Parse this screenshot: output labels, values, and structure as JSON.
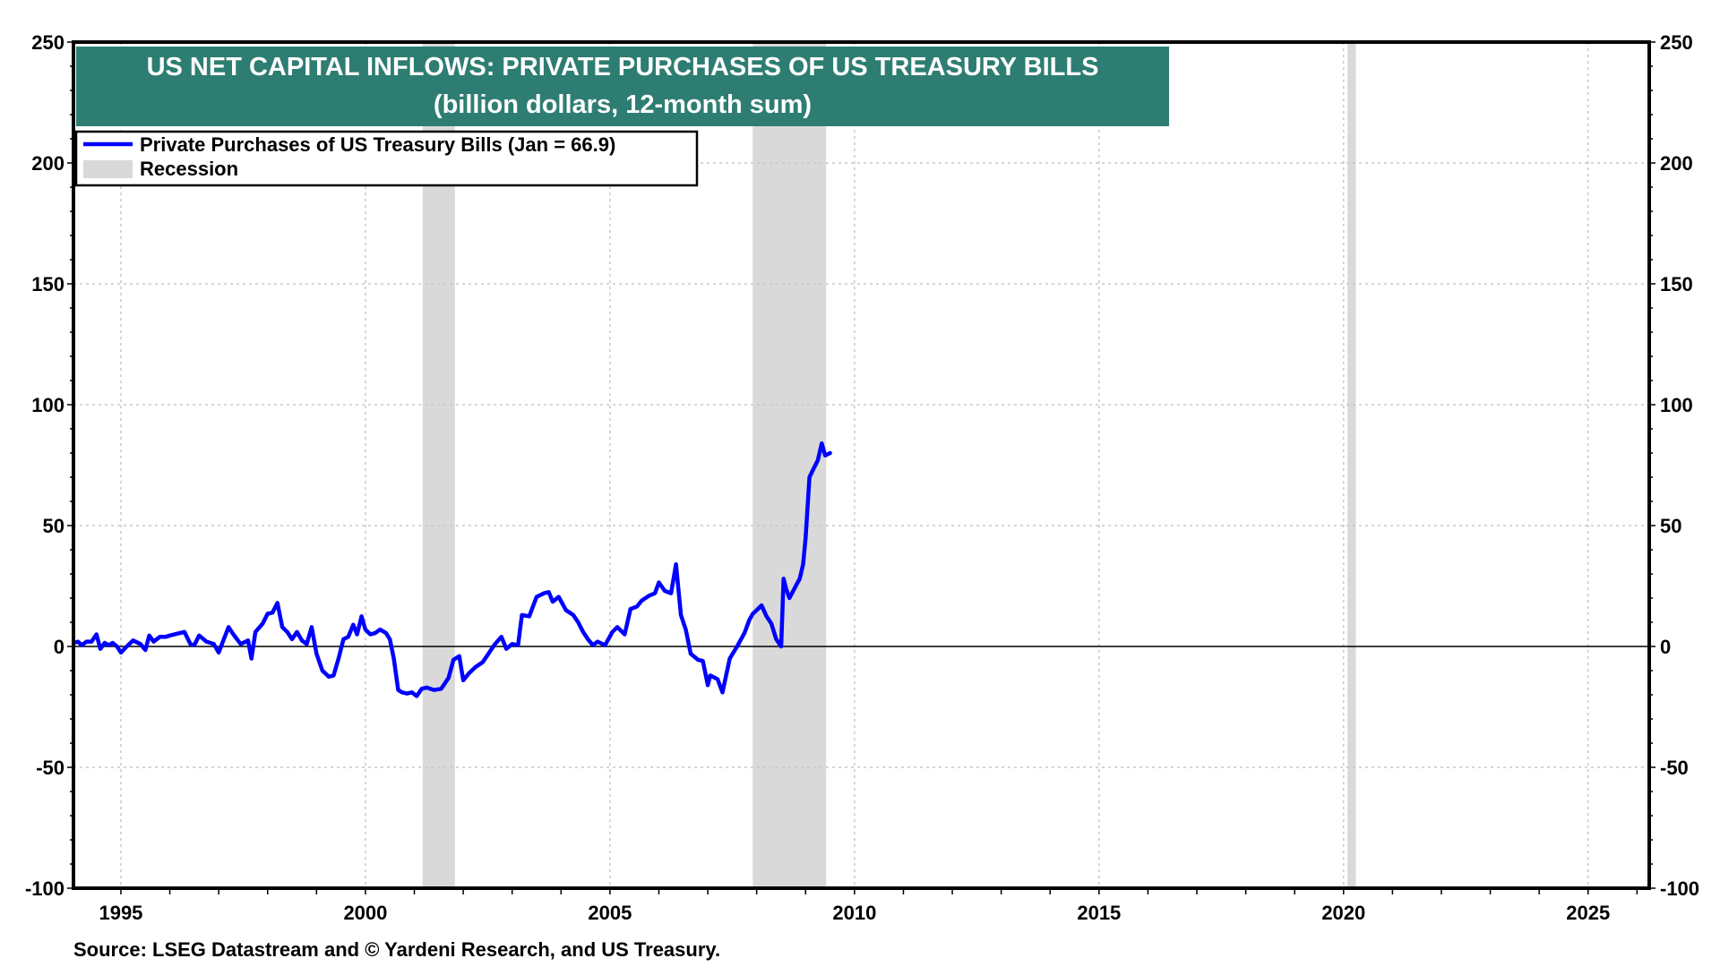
{
  "chart_data": {
    "type": "line",
    "title": "US NET CAPITAL INFLOWS: PRIVATE PURCHASES OF US TREASURY BILLS",
    "subtitle": "(billion dollars, 12-month sum)",
    "xlabel": "",
    "ylabel": "",
    "xlim": [
      1994.03,
      2026.25
    ],
    "ylim": [
      -100,
      250
    ],
    "y_ticks": [
      250,
      200,
      150,
      100,
      50,
      0,
      -50,
      -100
    ],
    "y_tick_labels": [
      "250",
      "200",
      "150",
      "100",
      "50",
      "0",
      "-50",
      "-100"
    ],
    "x_ticks": [
      1995,
      2000,
      2005,
      2010,
      2015,
      2020,
      2025
    ],
    "x_tick_labels": [
      "1995",
      "2000",
      "2005",
      "2010",
      "2015",
      "2020",
      "2025"
    ],
    "grid": true,
    "legend_position": "top-left",
    "colors": {
      "series": "#0000ff",
      "recession": "#d9d9d9",
      "title_bg": "#2e7d72"
    },
    "recessions": [
      {
        "label": "2001",
        "start": 2001.17,
        "end": 2001.83
      },
      {
        "label": "2008-09",
        "start": 2007.92,
        "end": 2009.42
      },
      {
        "label": "2020",
        "start": 2020.08,
        "end": 2020.25
      }
    ],
    "legend": [
      {
        "name": "Private Purchases of US Treasury Bills (Jan = 66.9)",
        "kind": "line"
      },
      {
        "name": "Recession",
        "kind": "area"
      }
    ],
    "series": [
      {
        "name": "Private Purchases of US Treasury Bills",
        "latest": "Jan = 66.9",
        "points": [
          [
            1994.04,
            1.5
          ],
          [
            1994.12,
            2.0
          ],
          [
            1994.2,
            0.5
          ],
          [
            1994.3,
            2
          ],
          [
            1994.4,
            2
          ],
          [
            1994.5,
            5
          ],
          [
            1994.58,
            -1
          ],
          [
            1994.67,
            1.5
          ],
          [
            1994.75,
            0.5
          ],
          [
            1994.83,
            1.5
          ],
          [
            1994.92,
            0
          ],
          [
            1995.0,
            -2.5
          ],
          [
            1995.12,
            0
          ],
          [
            1995.25,
            2.5
          ],
          [
            1995.4,
            1
          ],
          [
            1995.5,
            -1.5
          ],
          [
            1995.58,
            4.5
          ],
          [
            1995.67,
            2
          ],
          [
            1995.8,
            4
          ],
          [
            1995.92,
            4
          ],
          [
            1996.0,
            4.5
          ],
          [
            1996.2,
            5.5
          ],
          [
            1996.3,
            6
          ],
          [
            1996.42,
            1
          ],
          [
            1996.5,
            0.5
          ],
          [
            1996.6,
            4.5
          ],
          [
            1996.75,
            2
          ],
          [
            1996.9,
            1
          ],
          [
            1997.0,
            -2.5
          ],
          [
            1997.2,
            8
          ],
          [
            1997.3,
            5
          ],
          [
            1997.45,
            1
          ],
          [
            1997.6,
            2.5
          ],
          [
            1997.67,
            -5
          ],
          [
            1997.75,
            6
          ],
          [
            1997.9,
            9.5
          ],
          [
            1998.0,
            13.5
          ],
          [
            1998.1,
            14
          ],
          [
            1998.2,
            18
          ],
          [
            1998.3,
            8
          ],
          [
            1998.4,
            6
          ],
          [
            1998.5,
            3
          ],
          [
            1998.6,
            6
          ],
          [
            1998.7,
            2.5
          ],
          [
            1998.8,
            1
          ],
          [
            1998.9,
            8
          ],
          [
            1999.0,
            -3
          ],
          [
            1999.12,
            -10
          ],
          [
            1999.25,
            -12.5
          ],
          [
            1999.35,
            -12
          ],
          [
            1999.45,
            -5
          ],
          [
            1999.55,
            3
          ],
          [
            1999.65,
            4
          ],
          [
            1999.75,
            9
          ],
          [
            1999.83,
            5
          ],
          [
            1999.92,
            12.5
          ],
          [
            2000.0,
            7
          ],
          [
            2000.1,
            5
          ],
          [
            2000.2,
            5.5
          ],
          [
            2000.3,
            7
          ],
          [
            2000.42,
            5.5
          ],
          [
            2000.5,
            3
          ],
          [
            2000.58,
            -5
          ],
          [
            2000.67,
            -18
          ],
          [
            2000.75,
            -19
          ],
          [
            2000.85,
            -19.5
          ],
          [
            2000.95,
            -19
          ],
          [
            2001.05,
            -20.5
          ],
          [
            2001.15,
            -17.5
          ],
          [
            2001.25,
            -17
          ],
          [
            2001.4,
            -18
          ],
          [
            2001.55,
            -17.5
          ],
          [
            2001.7,
            -13
          ],
          [
            2001.8,
            -5.5
          ],
          [
            2001.92,
            -4
          ],
          [
            2002.0,
            -14
          ],
          [
            2002.12,
            -11
          ],
          [
            2002.25,
            -8.5
          ],
          [
            2002.4,
            -6.5
          ],
          [
            2002.55,
            -2
          ],
          [
            2002.65,
            1
          ],
          [
            2002.78,
            4
          ],
          [
            2002.88,
            -1
          ],
          [
            2003.0,
            1
          ],
          [
            2003.12,
            0.5
          ],
          [
            2003.2,
            13
          ],
          [
            2003.35,
            12.5
          ],
          [
            2003.5,
            20.5
          ],
          [
            2003.65,
            22
          ],
          [
            2003.75,
            22.5
          ],
          [
            2003.83,
            18.5
          ],
          [
            2003.95,
            20.5
          ],
          [
            2004.1,
            15
          ],
          [
            2004.25,
            13
          ],
          [
            2004.35,
            10
          ],
          [
            2004.45,
            6
          ],
          [
            2004.55,
            3
          ],
          [
            2004.65,
            0.5
          ],
          [
            2004.75,
            2
          ],
          [
            2004.9,
            0.5
          ],
          [
            2005.05,
            6
          ],
          [
            2005.15,
            8
          ],
          [
            2005.3,
            5
          ],
          [
            2005.42,
            15.5
          ],
          [
            2005.55,
            16.5
          ],
          [
            2005.65,
            19
          ],
          [
            2005.8,
            21
          ],
          [
            2005.92,
            22
          ],
          [
            2006.0,
            26.5
          ],
          [
            2006.12,
            23
          ],
          [
            2006.25,
            22
          ],
          [
            2006.35,
            34
          ],
          [
            2006.45,
            13
          ],
          [
            2006.55,
            7
          ],
          [
            2006.65,
            -3
          ],
          [
            2006.8,
            -5.5
          ],
          [
            2006.9,
            -6
          ],
          [
            2007.0,
            -16
          ],
          [
            2007.05,
            -12
          ],
          [
            2007.2,
            -13.5
          ],
          [
            2007.3,
            -19
          ],
          [
            2007.45,
            -5
          ],
          [
            2007.6,
            0
          ],
          [
            2007.75,
            5.5
          ],
          [
            2007.85,
            11
          ],
          [
            2007.92,
            13.5
          ],
          [
            2008.0,
            15
          ],
          [
            2008.1,
            17
          ],
          [
            2008.2,
            12.5
          ],
          [
            2008.3,
            9.5
          ],
          [
            2008.4,
            3
          ],
          [
            2008.5,
            0
          ],
          [
            2008.55,
            28
          ],
          [
            2008.6,
            24
          ],
          [
            2008.67,
            20
          ],
          [
            2008.8,
            25
          ],
          [
            2008.88,
            28
          ],
          [
            2008.95,
            34
          ],
          [
            2009.0,
            45
          ],
          [
            2009.08,
            70
          ],
          [
            2009.15,
            73
          ],
          [
            2009.25,
            77
          ],
          [
            2009.33,
            84
          ],
          [
            2009.4,
            79
          ],
          [
            2009.5,
            80
          ]
        ]
      }
    ]
  },
  "source": "Source: LSEG Datastream and © Yardeni Research, and US Treasury."
}
